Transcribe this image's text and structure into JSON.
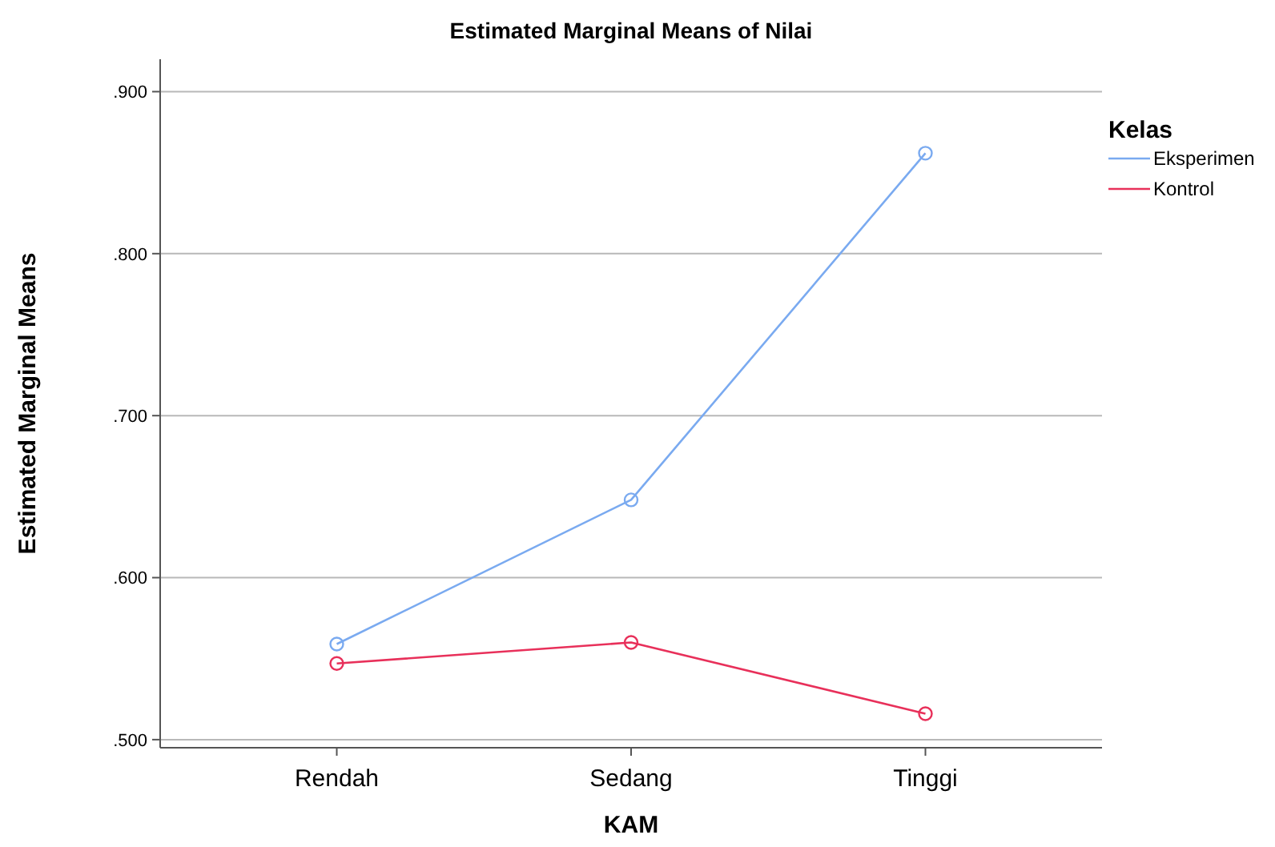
{
  "chart_data": {
    "type": "line",
    "title": "Estimated Marginal Means of Nilai",
    "xlabel": "KAM",
    "ylabel": "Estimated Marginal Means",
    "legend_title": "Kelas",
    "categories": [
      "Rendah",
      "Sedang",
      "Tinggi"
    ],
    "series": [
      {
        "name": "Eksperimen",
        "color": "#7aaaf0",
        "values": [
          0.559,
          0.648,
          0.862
        ]
      },
      {
        "name": "Kontrol",
        "color": "#e8305a",
        "values": [
          0.547,
          0.56,
          0.516
        ]
      }
    ],
    "ylim": [
      0.495,
      0.92
    ],
    "yticks": [
      {
        "value": 0.5,
        "label": ".500"
      },
      {
        "value": 0.6,
        "label": ".600"
      },
      {
        "value": 0.7,
        "label": ".700"
      },
      {
        "value": 0.8,
        "label": ".800"
      },
      {
        "value": 0.9,
        "label": ".900"
      }
    ],
    "grid": "y",
    "legend": "top right",
    "marker": "circle",
    "line_style": "solid"
  }
}
